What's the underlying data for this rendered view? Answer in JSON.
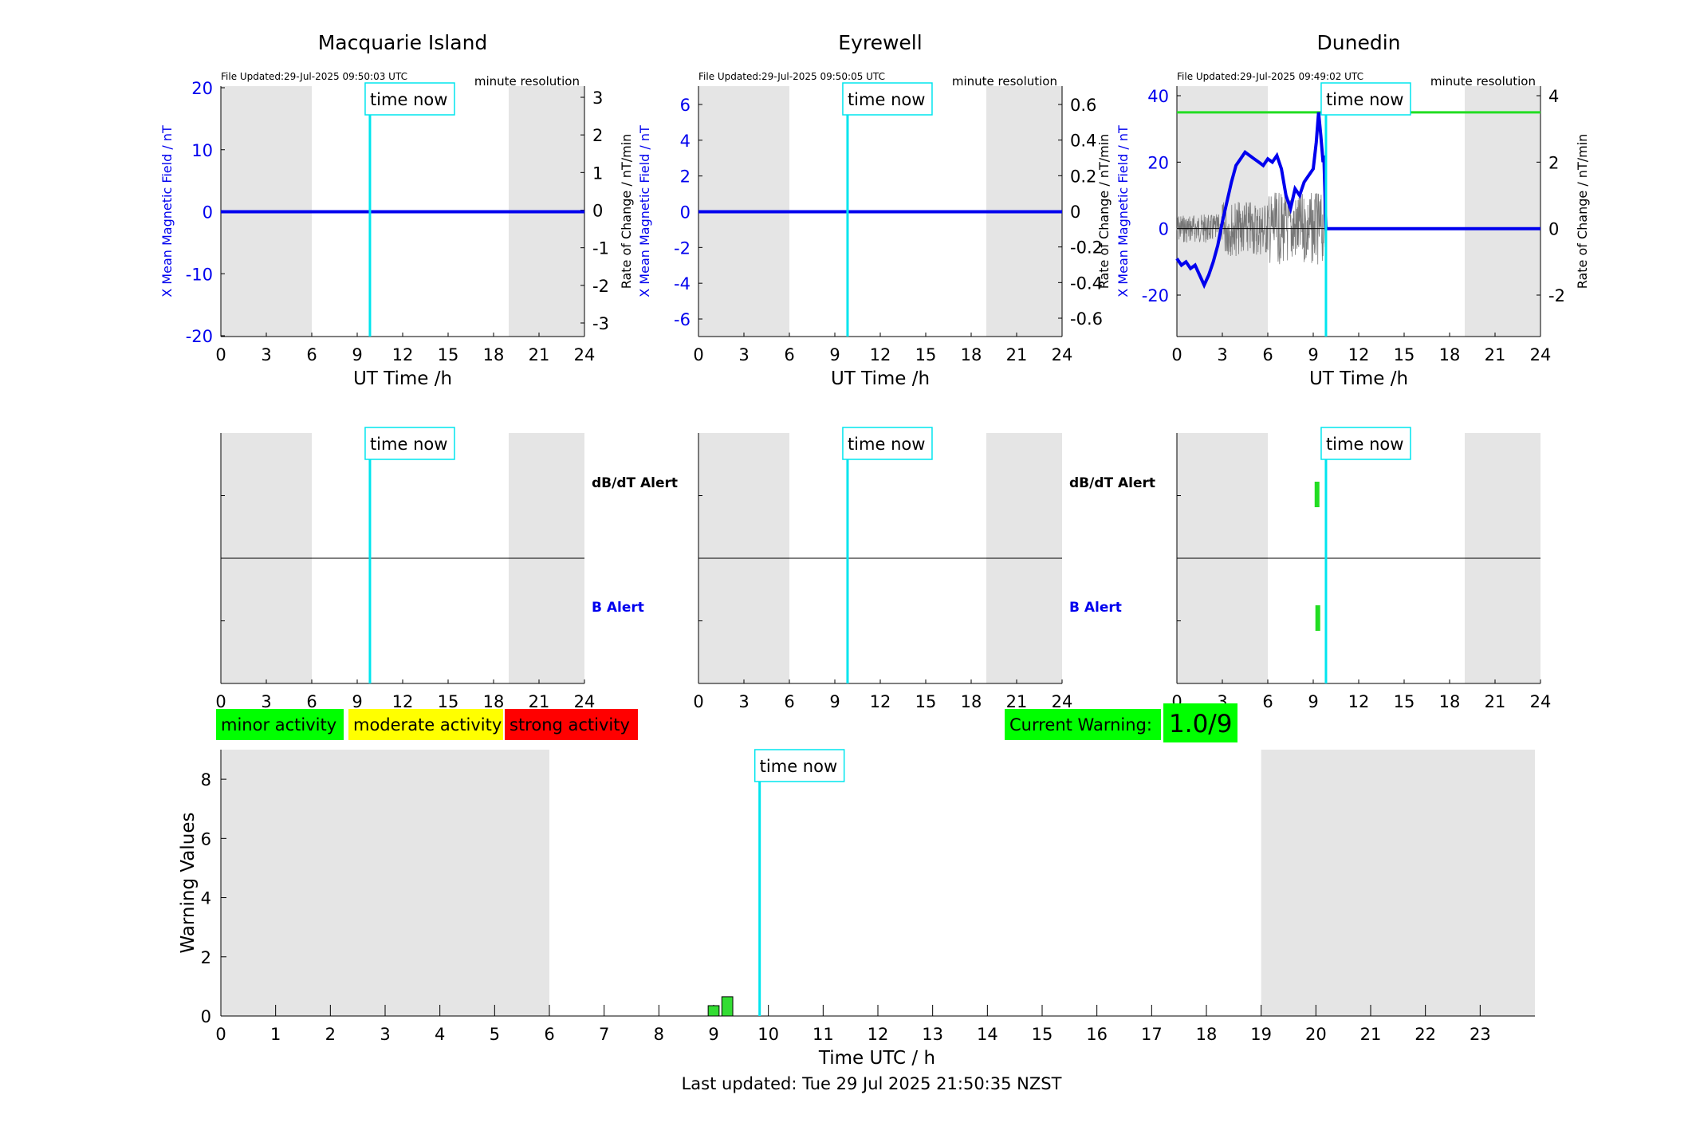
{
  "hour_ticks": [
    "0",
    "3",
    "6",
    "9",
    "12",
    "15",
    "18",
    "21",
    "24"
  ],
  "bottom_ticks": [
    "0",
    "1",
    "2",
    "3",
    "4",
    "5",
    "6",
    "7",
    "8",
    "9",
    "10",
    "11",
    "12",
    "13",
    "14",
    "15",
    "16",
    "17",
    "18",
    "19",
    "20",
    "21",
    "22",
    "23"
  ],
  "time_now_label": "time now",
  "time_now_hour": 9.84,
  "night_shading": [
    [
      0,
      6
    ],
    [
      19,
      24
    ]
  ],
  "dbdt_alert_label": "dB/dT Alert",
  "b_alert_label": "B Alert",
  "colors": {
    "night": "#e5e5e5",
    "time_now": "#00e5ee",
    "field": "#0000ee",
    "rate": "#333333",
    "threshold": "#22dd22",
    "minor": "#00ff00",
    "moderate": "#ffff00",
    "strong": "#ff0000",
    "bar": "#33dd33"
  },
  "stations": [
    {
      "name": "Macquarie Island",
      "file_updated": "File Updated:29-Jul-2025 09:50:03 UTC",
      "resolution": "minute resolution",
      "xlabel": "UT Time /h",
      "ylabel_left": "X Mean Magnetic Field / nT",
      "ylabel_right": "Rate of Change / nT/min",
      "left_ticks": [
        "20",
        "10",
        "0",
        "-10",
        "-20"
      ],
      "right_ticks": [
        "3",
        "2",
        "1",
        "0",
        "-1",
        "-2",
        "-3"
      ],
      "show_alert_labels": true,
      "field_trace": "flat-zero",
      "alerts": {
        "dbdt": [],
        "b": []
      }
    },
    {
      "name": "Eyrewell",
      "file_updated": "File Updated:29-Jul-2025 09:50:05 UTC",
      "resolution": "minute resolution",
      "xlabel": "UT Time /h",
      "ylabel_left": "X Mean Magnetic Field / nT",
      "ylabel_right": "Rate of Change / nT/min",
      "left_ticks": [
        "6",
        "4",
        "2",
        "0",
        "-2",
        "-4",
        "-6"
      ],
      "right_ticks": [
        "0.6",
        "0.4",
        "0.2",
        "0",
        "-0.2",
        "-0.4",
        "-0.6"
      ],
      "show_alert_labels": true,
      "field_trace": "flat-zero",
      "alerts": {
        "dbdt": [],
        "b": []
      }
    },
    {
      "name": "Dunedin",
      "file_updated": "File Updated:29-Jul-2025 09:49:02 UTC",
      "resolution": "minute resolution",
      "xlabel": "UT Time /h",
      "ylabel_left": "X Mean Magnetic Field / nT",
      "ylabel_right": "Rate of Change / nT/min",
      "left_ticks": [
        "40",
        "20",
        "0",
        "-20"
      ],
      "right_ticks": [
        "4",
        "2",
        "0",
        "-2"
      ],
      "show_alert_labels": false,
      "field_trace": "active",
      "threshold_nT": 35,
      "field_series": {
        "x": [
          0,
          0.3,
          0.6,
          0.9,
          1.2,
          1.5,
          1.8,
          2.1,
          2.4,
          2.7,
          3.0,
          3.3,
          3.6,
          3.9,
          4.2,
          4.5,
          4.8,
          5.1,
          5.4,
          5.7,
          6.0,
          6.3,
          6.6,
          6.9,
          7.2,
          7.5,
          7.8,
          8.1,
          8.4,
          8.7,
          9.0,
          9.2,
          9.35,
          9.5,
          9.65,
          9.7,
          9.84,
          24
        ],
        "y": [
          -9,
          -11,
          -10,
          -12,
          -11,
          -14,
          -17,
          -14,
          -10,
          -5,
          2,
          8,
          14,
          19,
          21,
          23,
          22,
          21,
          20,
          19,
          21,
          20,
          22,
          18,
          10,
          6,
          12,
          10,
          14,
          16,
          18,
          26,
          35,
          28,
          20,
          22,
          0,
          0
        ]
      },
      "alerts": {
        "dbdt": [
          9.25
        ],
        "b": [
          9.3
        ]
      }
    }
  ],
  "legend": {
    "minor": "minor activity",
    "moderate": "moderate activity",
    "strong": "strong activity"
  },
  "current_warning": {
    "label": "Current Warning:",
    "value": "1.0/9"
  },
  "chart_data": {
    "type": "bar",
    "xlabel": "Time UTC / h",
    "ylabel": "Warning Values",
    "xlim": [
      0,
      24
    ],
    "ylim": [
      0,
      9
    ],
    "y_ticks": [
      "0",
      "2",
      "4",
      "6",
      "8"
    ],
    "x": [
      9.0,
      9.25
    ],
    "values": [
      0.35,
      0.65
    ]
  },
  "footer": "Last updated: Tue 29 Jul 2025 21:50:35 NZST"
}
